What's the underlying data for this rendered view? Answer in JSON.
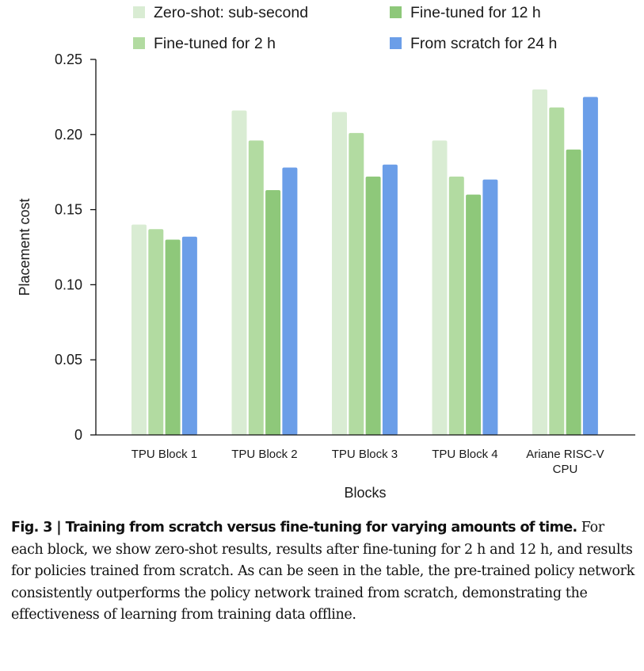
{
  "chart_data": {
    "type": "bar",
    "title": "",
    "xlabel": "Blocks",
    "ylabel": "Placement cost",
    "ylim": [
      0,
      0.25
    ],
    "yticks": [
      {
        "value": 0,
        "label": "0"
      },
      {
        "value": 0.05,
        "label": "0.05"
      },
      {
        "value": 0.1,
        "label": "0.10"
      },
      {
        "value": 0.15,
        "label": "0.15"
      },
      {
        "value": 0.2,
        "label": "0.20"
      },
      {
        "value": 0.25,
        "label": "0.25"
      }
    ],
    "grid": false,
    "legend_position": "top",
    "categories": [
      [
        "TPU Block 1"
      ],
      [
        "TPU Block 2"
      ],
      [
        "TPU Block 3"
      ],
      [
        "TPU Block 4"
      ],
      [
        "Ariane RISC-V",
        "CPU"
      ]
    ],
    "series": [
      {
        "name": "Zero-shot: sub-second",
        "color": "#d9ecd3",
        "values": [
          0.14,
          0.216,
          0.215,
          0.196,
          0.23
        ]
      },
      {
        "name": "Fine-tuned for 2 h",
        "color": "#b2dba1",
        "values": [
          0.137,
          0.196,
          0.201,
          0.172,
          0.218
        ]
      },
      {
        "name": "Fine-tuned for 12 h",
        "color": "#8ec87a",
        "values": [
          0.13,
          0.163,
          0.172,
          0.16,
          0.19
        ]
      },
      {
        "name": "From scratch for 24 h",
        "color": "#6b9ee8",
        "values": [
          0.132,
          0.178,
          0.18,
          0.17,
          0.225
        ]
      }
    ]
  },
  "caption": {
    "label": "Fig. 3 | Training from scratch versus fine-tuning for varying amounts of time.",
    "text": " For each block, we show zero-shot results, results after fine-tuning for 2 h and 12 h, and results for policies trained from scratch. As can be seen in the table, the pre-trained policy network consistently outperforms the policy network trained from scratch, demonstrating the effectiveness of learning from training data offline."
  }
}
